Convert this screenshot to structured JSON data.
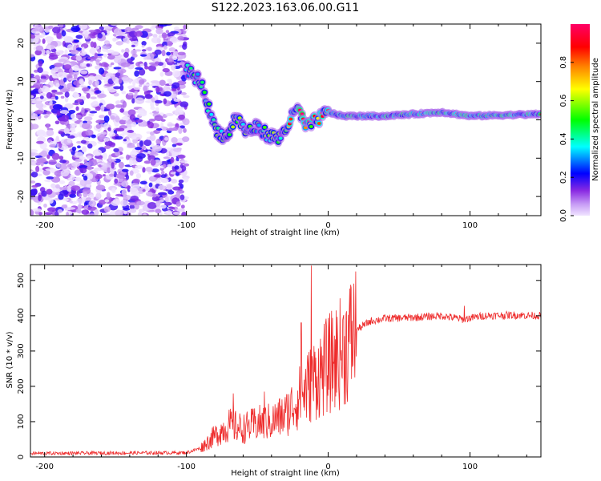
{
  "figure_title": "S122.2023.163.06.00.G11",
  "chart_data": [
    {
      "type": "heatmap",
      "xlabel": "Height of straight line (km)",
      "ylabel": "Frequency (Hz)",
      "xlim": [
        -210,
        150
      ],
      "ylim": [
        -25,
        25
      ],
      "xticks": [
        -200,
        -100,
        0,
        100
      ],
      "yticks": [
        20,
        10,
        0,
        -10,
        -20
      ],
      "colorbar": {
        "label": "Normalized spectral amplitude",
        "range": [
          0.0,
          1.0
        ],
        "ticks": [
          "0.0",
          "0.2",
          "0.4",
          "0.6",
          "0.8"
        ],
        "colormap": [
          "#f0e4ff",
          "#8a2be2",
          "#0000ff",
          "#00ffff",
          "#00ff00",
          "#ffff00",
          "#ff8000",
          "#ff0000",
          "#ff0066"
        ]
      },
      "features": [
        {
          "name": "noise",
          "x_range": [
            -210,
            -100
          ],
          "y_range": [
            -25,
            25
          ],
          "amplitude": 0.12
        },
        {
          "name": "signal_trace",
          "points": [
            {
              "x": -100,
              "y": 13
            },
            {
              "x": -90,
              "y": 10
            },
            {
              "x": -85,
              "y": 4
            },
            {
              "x": -80,
              "y": -2
            },
            {
              "x": -72,
              "y": -5
            },
            {
              "x": -65,
              "y": 1
            },
            {
              "x": -58,
              "y": -3
            },
            {
              "x": -50,
              "y": -2
            },
            {
              "x": -42,
              "y": -4
            },
            {
              "x": -35,
              "y": -5
            },
            {
              "x": -28,
              "y": -1
            },
            {
              "x": -22,
              "y": 3
            },
            {
              "x": -15,
              "y": -2
            },
            {
              "x": -8,
              "y": 0
            },
            {
              "x": 0,
              "y": 2
            },
            {
              "x": 10,
              "y": 1
            },
            {
              "x": 40,
              "y": 1
            },
            {
              "x": 80,
              "y": 2
            },
            {
              "x": 100,
              "y": 1
            },
            {
              "x": 150,
              "y": 1.5
            }
          ]
        }
      ]
    },
    {
      "type": "line",
      "xlabel": "Height of straight line (km)",
      "ylabel": "SNR (10 * v/v)",
      "xlim": [
        -210,
        150
      ],
      "ylim": [
        0,
        545
      ],
      "xticks": [
        -200,
        -100,
        0,
        100
      ],
      "yticks": [
        0,
        100,
        200,
        300,
        400,
        500
      ],
      "series": [
        {
          "color": "#ee2b2b",
          "envelope": {
            "x": [
              -210,
              -100,
              -90,
              -80,
              -70,
              -60,
              -50,
              -40,
              -30,
              -20,
              -10,
              0,
              10,
              20,
              30,
              40,
              60,
              80,
              95,
              110,
              130,
              150
            ],
            "y": [
              10,
              12,
              25,
              60,
              90,
              80,
              95,
              100,
              120,
              170,
              220,
              260,
              300,
              360,
              385,
              392,
              395,
              400,
              390,
              400,
              402,
              400
            ]
          },
          "spikes": [
            {
              "x": -12,
              "y": 542
            },
            {
              "x": -19,
              "y": 380
            },
            {
              "x": -45,
              "y": 185
            },
            {
              "x": -67,
              "y": 180
            },
            {
              "x": 96,
              "y": 428
            }
          ]
        }
      ]
    }
  ]
}
